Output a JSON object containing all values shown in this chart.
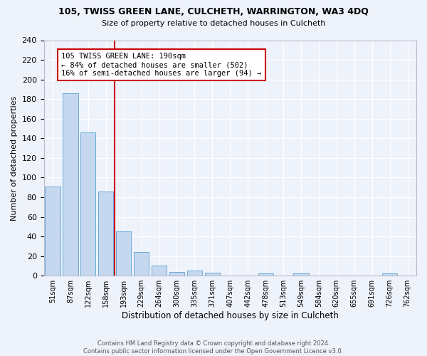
{
  "title_line1": "105, TWISS GREEN LANE, CULCHETH, WARRINGTON, WA3 4DQ",
  "title_line2": "Size of property relative to detached houses in Culcheth",
  "xlabel": "Distribution of detached houses by size in Culcheth",
  "ylabel": "Number of detached properties",
  "footer_line1": "Contains HM Land Registry data © Crown copyright and database right 2024.",
  "footer_line2": "Contains public sector information licensed under the Open Government Licence v3.0.",
  "bin_labels": [
    "51sqm",
    "87sqm",
    "122sqm",
    "158sqm",
    "193sqm",
    "229sqm",
    "264sqm",
    "300sqm",
    "335sqm",
    "371sqm",
    "407sqm",
    "442sqm",
    "478sqm",
    "513sqm",
    "549sqm",
    "584sqm",
    "620sqm",
    "655sqm",
    "691sqm",
    "726sqm",
    "762sqm"
  ],
  "bar_values": [
    91,
    186,
    146,
    86,
    45,
    24,
    10,
    4,
    5,
    3,
    0,
    0,
    2,
    0,
    2,
    0,
    0,
    0,
    0,
    2,
    0
  ],
  "bar_color": "#c5d8f0",
  "bar_edge_color": "#6aaad4",
  "background_color": "#eef2fb",
  "grid_color": "#ffffff",
  "annotation_text": "105 TWISS GREEN LANE: 190sqm\n← 84% of detached houses are smaller (502)\n16% of semi-detached houses are larger (94) →",
  "annotation_box_color": "#ffffff",
  "annotation_box_edge": "#cc0000",
  "red_line_color": "#cc0000",
  "red_line_bin_index": 4,
  "ylim": [
    0,
    240
  ],
  "yticks": [
    0,
    20,
    40,
    60,
    80,
    100,
    120,
    140,
    160,
    180,
    200,
    220,
    240
  ]
}
